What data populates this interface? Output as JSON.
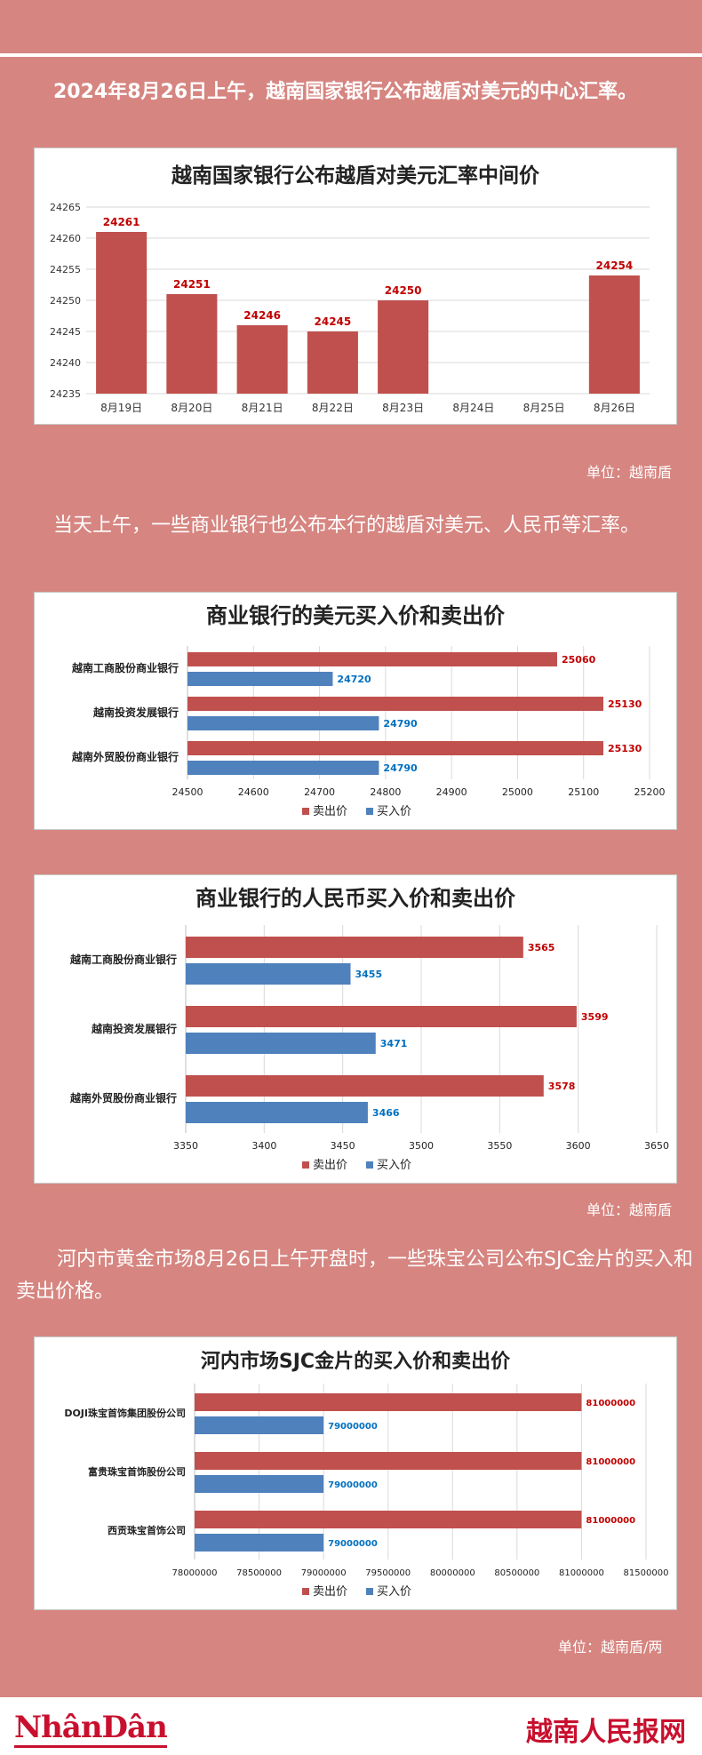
{
  "colors": {
    "red": "#c0504d",
    "blue": "#4f81bd",
    "label_red": "#c00000",
    "label_blue": "#0070c0"
  },
  "intro_text": "2024年8月26日上午，越南国家银行公布越盾对美元的中心汇率。",
  "unit_1": "单位：越南盾",
  "para_2": "当天上午，一些商业银行也公布本行的越盾对美元、人民币等汇率。",
  "unit_2": "单位：越南盾",
  "para_3": "河内市黄金市场8月26日上午开盘时，一些珠宝公司公布SJC金片的买入和卖出价格。",
  "unit_3": "单位：越南盾/两",
  "footer": {
    "logo_left": "NhânDân",
    "logo_right": "越南人民报网"
  },
  "chart_data": [
    {
      "type": "bar",
      "title": "越南国家银行公布越盾对美元汇率中间价",
      "categories": [
        "8月19日",
        "8月20日",
        "8月21日",
        "8月22日",
        "8月23日",
        "8月24日",
        "8月25日",
        "8月26日"
      ],
      "values": [
        24261,
        24251,
        24246,
        24245,
        24250,
        null,
        null,
        24254
      ],
      "ylim": [
        24235,
        24265
      ],
      "yticks": [
        24235,
        24240,
        24245,
        24250,
        24255,
        24260,
        24265
      ],
      "grid": true
    },
    {
      "type": "bar",
      "orientation": "horizontal",
      "title": "商业银行的美元买入价和卖出价",
      "categories": [
        "越南工商股份商业银行",
        "越南投资发展银行",
        "越南外贸股份商业银行"
      ],
      "series": [
        {
          "name": "卖出价",
          "values": [
            25060,
            25130,
            25130
          ]
        },
        {
          "name": "买入价",
          "values": [
            24720,
            24790,
            24790
          ]
        }
      ],
      "xlim": [
        24500,
        25200
      ],
      "xticks": [
        24500,
        24600,
        24700,
        24800,
        24900,
        25000,
        25100,
        25200
      ],
      "legend": "bottom",
      "grid": true
    },
    {
      "type": "bar",
      "orientation": "horizontal",
      "title": "商业银行的人民币买入价和卖出价",
      "categories": [
        "越南工商股份商业银行",
        "越南投资发展银行",
        "越南外贸股份商业银行"
      ],
      "series": [
        {
          "name": "卖出价",
          "values": [
            3565,
            3599,
            3578
          ]
        },
        {
          "name": "买入价",
          "values": [
            3455,
            3471,
            3466
          ]
        }
      ],
      "xlim": [
        3350,
        3650
      ],
      "xticks": [
        3350,
        3400,
        3450,
        3500,
        3550,
        3600,
        3650
      ],
      "legend": "bottom",
      "grid": true
    },
    {
      "type": "bar",
      "orientation": "horizontal",
      "title": "河内市场SJC金片的买入价和卖出价",
      "categories": [
        "DOJI珠宝首饰集团股份公司",
        "富贵珠宝首饰股份公司",
        "西贡珠宝首饰公司"
      ],
      "series": [
        {
          "name": "卖出价",
          "values": [
            81000000,
            81000000,
            81000000
          ]
        },
        {
          "name": "买入价",
          "values": [
            79000000,
            79000000,
            79000000
          ]
        }
      ],
      "xlim": [
        78000000,
        81500000
      ],
      "xticks": [
        78000000,
        78500000,
        79000000,
        79500000,
        80000000,
        80500000,
        81000000,
        81500000
      ],
      "legend": "bottom",
      "grid": true
    }
  ]
}
